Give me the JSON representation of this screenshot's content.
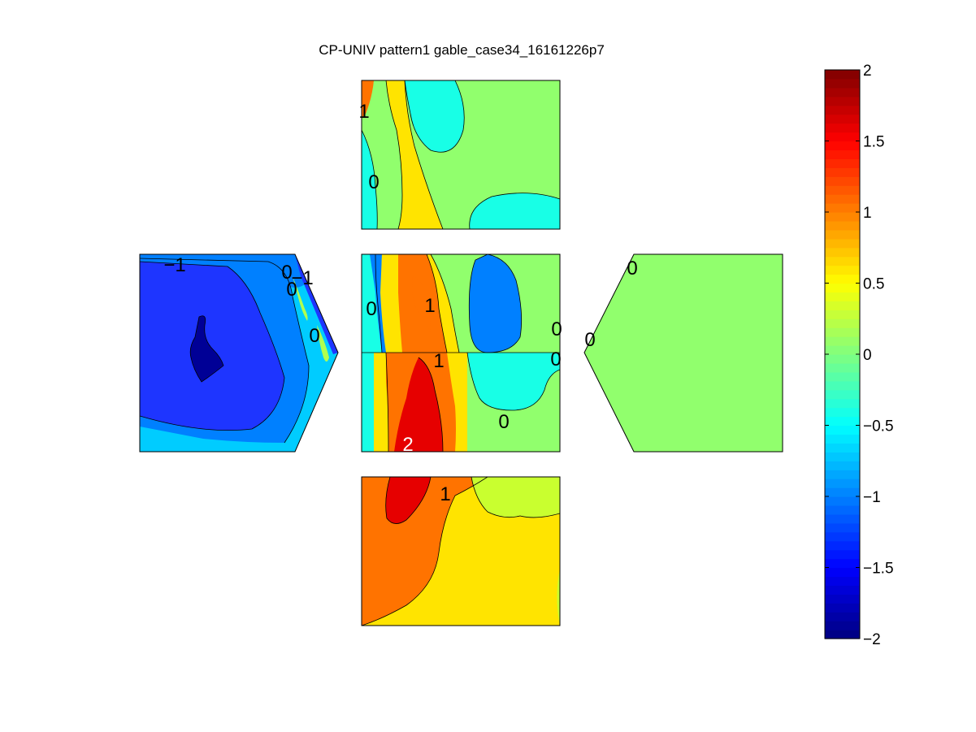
{
  "chart_data": {
    "type": "heatmap",
    "title": "CP-UNIV pattern1 gable_case34_16161226p7",
    "colormap": "jet",
    "clim": [
      -2,
      2
    ],
    "colorbar": {
      "ticks": [
        2,
        1.5,
        1,
        0.5,
        0,
        -0.5,
        -1,
        -1.5,
        -2
      ],
      "tick_labels": [
        "2",
        "1.5",
        "1",
        "0.5",
        "0",
        "−0.5",
        "−1",
        "−1.5",
        "−2"
      ]
    },
    "panels": [
      {
        "name": "top-roof",
        "shape": "rectangle",
        "approx_range": [
          -0.5,
          1
        ]
      },
      {
        "name": "left-gable",
        "shape": "pentagon",
        "approx_range": [
          -1.9,
          0
        ]
      },
      {
        "name": "center-wall",
        "shape": "rectangle",
        "approx_range": [
          -1,
          2
        ]
      },
      {
        "name": "right-gable",
        "shape": "pentagon",
        "approx_range": [
          0,
          0
        ]
      },
      {
        "name": "bottom-wall",
        "shape": "rectangle",
        "approx_range": [
          0.5,
          1.5
        ]
      }
    ],
    "contour_labels": [
      {
        "panel": "top-roof",
        "text": "1"
      },
      {
        "panel": "top-roof",
        "text": "0"
      },
      {
        "panel": "left-gable",
        "text": "−1"
      },
      {
        "panel": "left-gable",
        "text": "0"
      },
      {
        "panel": "left-gable",
        "text": "−1"
      },
      {
        "panel": "left-gable",
        "text": "0"
      },
      {
        "panel": "left-gable",
        "text": "0"
      },
      {
        "panel": "center-wall",
        "text": "0"
      },
      {
        "panel": "center-wall",
        "text": "1"
      },
      {
        "panel": "center-wall",
        "text": "0"
      },
      {
        "panel": "center-wall",
        "text": "1"
      },
      {
        "panel": "center-wall",
        "text": "0"
      },
      {
        "panel": "center-wall",
        "text": "0"
      },
      {
        "panel": "center-wall",
        "text": "2"
      },
      {
        "panel": "right-gable",
        "text": "0"
      },
      {
        "panel": "right-gable",
        "text": "0"
      },
      {
        "panel": "bottom-wall",
        "text": "1"
      }
    ]
  }
}
